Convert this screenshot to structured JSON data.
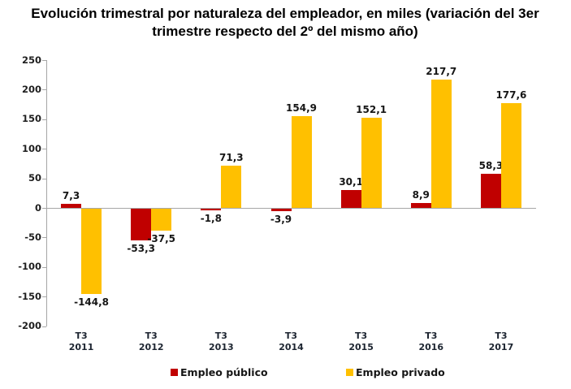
{
  "title": "Evolución trimestral por naturaleza del empleador, en miles (variación del 3er trimestre respecto del 2º del mismo año)",
  "chart_data": {
    "type": "bar",
    "title": "Evolución trimestral por naturaleza del empleador, en miles (variación del 3er trimestre respecto del 2º del mismo año)",
    "categories": [
      {
        "quarter": "T3",
        "year": "2011"
      },
      {
        "quarter": "T3",
        "year": "2012"
      },
      {
        "quarter": "T3",
        "year": "2013"
      },
      {
        "quarter": "T3",
        "year": "2014"
      },
      {
        "quarter": "T3",
        "year": "2015"
      },
      {
        "quarter": "T3",
        "year": "2016"
      },
      {
        "quarter": "T3",
        "year": "2017"
      }
    ],
    "series": [
      {
        "name": "Empleo público",
        "color": "#C00000",
        "values": [
          7.3,
          -53.3,
          -1.8,
          -3.9,
          30.1,
          8.9,
          58.3
        ],
        "labels": [
          "7,3",
          "-53,3",
          "-1,8",
          "-3,9",
          "30,1",
          "8,9",
          "58,3"
        ]
      },
      {
        "name": "Empleo privado",
        "color": "#FFC000",
        "values": [
          -144.8,
          -37.5,
          71.3,
          154.9,
          152.1,
          217.7,
          177.6
        ],
        "labels": [
          "-144,8",
          "-37,5",
          "71,3",
          "154,9",
          "152,1",
          "217,7",
          "177,6"
        ]
      }
    ],
    "xlabel": "",
    "ylabel": "",
    "ylim": [
      -200,
      250
    ],
    "yticks": [
      250,
      200,
      150,
      100,
      50,
      0,
      -50,
      -100,
      -150,
      -200
    ],
    "grid": false,
    "legend_position": "bottom",
    "axis_color": "#A6A6A6"
  }
}
